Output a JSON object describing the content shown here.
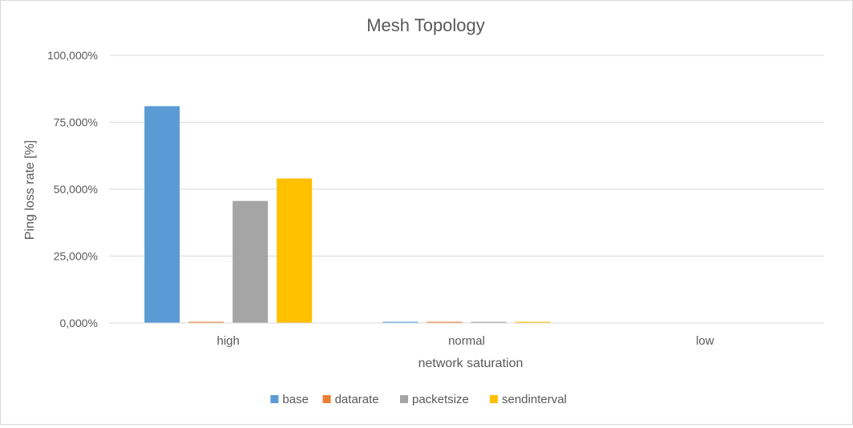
{
  "chart_data": {
    "type": "bar",
    "title": "Mesh Topology",
    "xlabel": "network saturation",
    "ylabel": "Ping loss rate [%]",
    "categories": [
      "high",
      "normal",
      "low"
    ],
    "series": [
      {
        "name": "base",
        "color": "#5b9bd5",
        "values": [
          81.0,
          0.3,
          0.0
        ]
      },
      {
        "name": "datarate",
        "color": "#ed7d31",
        "values": [
          0.3,
          0.3,
          0.0
        ]
      },
      {
        "name": "packetsize",
        "color": "#a5a5a5",
        "values": [
          45.6,
          0.3,
          0.0
        ]
      },
      {
        "name": "sendinterval",
        "color": "#ffc000",
        "values": [
          54.0,
          0.3,
          0.0
        ]
      }
    ],
    "ylim": [
      0,
      100
    ],
    "yticks": [
      0,
      25,
      50,
      75,
      100
    ],
    "ytick_labels": [
      "0,000%",
      "25,000%",
      "50,000%",
      "75,000%",
      "100,000%"
    ],
    "grid": true,
    "legend_position": "bottom"
  }
}
